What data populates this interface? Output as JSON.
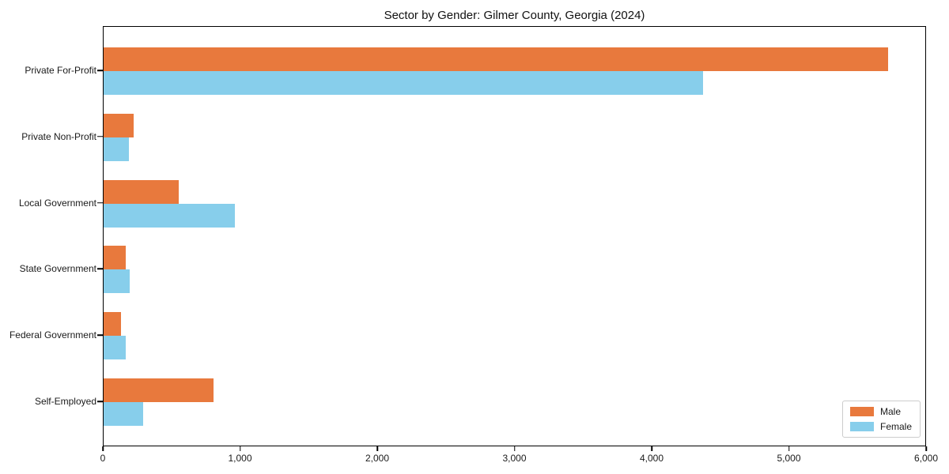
{
  "chart_data": {
    "type": "bar",
    "orientation": "horizontal",
    "title": "Sector by Gender: Gilmer County, Georgia (2024)",
    "categories": [
      "Private For-Profit",
      "Private Non-Profit",
      "Local Government",
      "State Government",
      "Federal Government",
      "Self-Employed"
    ],
    "series": [
      {
        "name": "Male",
        "color": "#E8793D",
        "values": [
          5730,
          220,
          550,
          160,
          125,
          800
        ]
      },
      {
        "name": "Female",
        "color": "#87CEEB",
        "values": [
          4380,
          185,
          960,
          190,
          160,
          290
        ]
      }
    ],
    "xlim": [
      0,
      6000
    ],
    "x_ticks": [
      {
        "value": 0,
        "label": "0"
      },
      {
        "value": 1000,
        "label": "1,000"
      },
      {
        "value": 2000,
        "label": "2,000"
      },
      {
        "value": 3000,
        "label": "3,000"
      },
      {
        "value": 4000,
        "label": "4,000"
      },
      {
        "value": 5000,
        "label": "5,000"
      },
      {
        "value": 6000,
        "label": "6,000"
      }
    ],
    "grid": false,
    "legend_position": "lower right"
  }
}
